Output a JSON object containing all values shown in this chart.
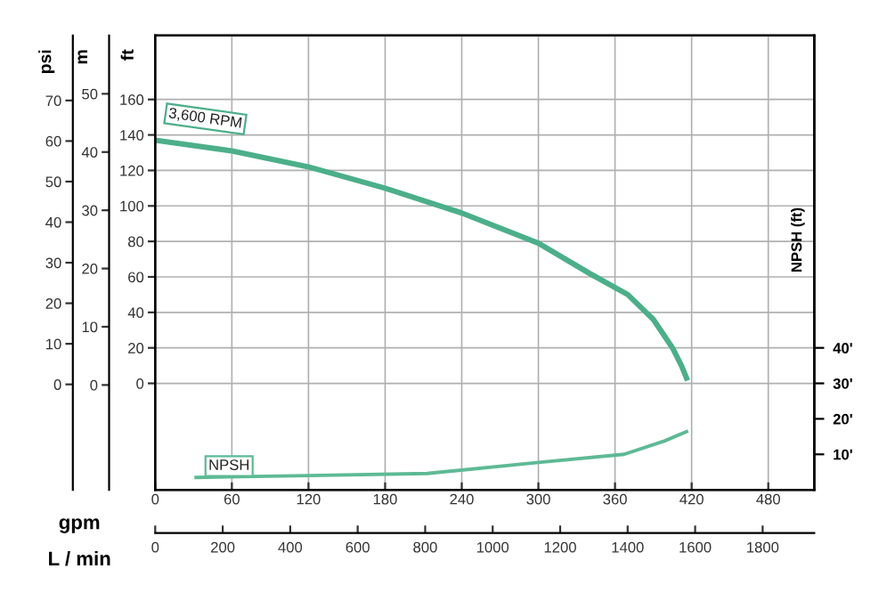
{
  "chart_data": [
    {
      "type": "line",
      "xlabel": "gpm",
      "x2label": "L / min",
      "ylabel": "ft",
      "y2label": "psi",
      "y3label": "m",
      "xlim": [
        0,
        516
      ],
      "xticks": [
        0,
        60,
        120,
        180,
        240,
        300,
        360,
        420,
        480
      ],
      "x2lim": [
        0,
        1953
      ],
      "x2ticks": [
        0,
        200,
        400,
        600,
        800,
        1000,
        1200,
        1400,
        1600,
        1800
      ],
      "ylim": [
        -60,
        196
      ],
      "yticks": [
        0,
        20,
        40,
        60,
        80,
        100,
        120,
        140,
        160
      ],
      "y2lim": [
        -26,
        86
      ],
      "y2ticks": [
        0,
        10,
        20,
        30,
        40,
        50,
        60,
        70
      ],
      "y3lim": [
        -18,
        60
      ],
      "y3ticks": [
        0,
        10,
        20,
        30,
        40,
        50
      ],
      "grid": true,
      "marker": "none",
      "line_style": "solid",
      "series": [
        {
          "name": "3,600 RPM",
          "color": "#4caf8a",
          "x": [
            0,
            60,
            120,
            180,
            240,
            300,
            340,
            370,
            390,
            405,
            412,
            416
          ],
          "values": [
            137,
            131,
            122,
            110,
            96,
            79,
            62,
            50,
            36,
            20,
            10,
            3
          ]
        }
      ]
    },
    {
      "type": "line",
      "ylabel": "NPSH (ft)",
      "tick_labels": "y",
      "xlim": [
        0,
        516
      ],
      "ylim": [
        0,
        128
      ],
      "yticks": [
        {
          "value": 10,
          "label": "10'"
        },
        {
          "value": 20,
          "label": "20'"
        },
        {
          "value": 30,
          "label": "30'"
        },
        {
          "value": 40,
          "label": "40'"
        }
      ],
      "marker": "none",
      "line_style": "solid",
      "series": [
        {
          "name": "NPSH",
          "color": "#5dba95",
          "x": [
            32,
            120,
            213,
            300,
            367,
            399,
            416
          ],
          "values": [
            3.5,
            4,
            4.6,
            7.7,
            10,
            13.8,
            16.4
          ]
        }
      ]
    }
  ]
}
